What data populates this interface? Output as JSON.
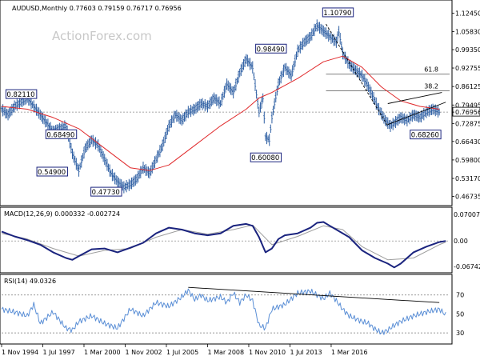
{
  "chart_data": [
    {
      "type": "ohlc",
      "header": "AUDUSD,Monthly  0.77603 0.79159 0.76717 0.76956",
      "watermark": "ActionForex.com",
      "ylim": [
        0.44,
        1.16
      ],
      "y_ticks": [
        "1.12450",
        "1.05830",
        "0.99350",
        "0.92755",
        "0.86125",
        "0.79495",
        "0.76956",
        "0.72875",
        "0.66430",
        "0.59800",
        "0.53170",
        "0.46735"
      ],
      "last_price": "0.76956",
      "fib_levels": [
        {
          "label": "61.8",
          "value": 0.9055
        },
        {
          "label": "38.2",
          "value": 0.846
        }
      ],
      "price_labels": [
        "1.10790",
        "0.98490",
        "0.82110",
        "0.68490",
        "0.60080",
        "0.68260",
        "0.54900",
        "0.47730"
      ],
      "series": [
        {
          "points": [
            [
              0,
              0.78
            ],
            [
              5,
              0.76
            ],
            [
              10,
              0.79
            ],
            [
              20,
              0.82
            ],
            [
              30,
              0.76
            ],
            [
              40,
              0.7
            ],
            [
              50,
              0.72
            ],
            [
              55,
              0.62
            ],
            [
              60,
              0.56
            ],
            [
              65,
              0.64
            ],
            [
              70,
              0.67
            ],
            [
              75,
              0.65
            ],
            [
              80,
              0.6
            ],
            [
              85,
              0.55
            ],
            [
              90,
              0.52
            ],
            [
              95,
              0.5
            ],
            [
              100,
              0.51
            ],
            [
              105,
              0.53
            ],
            [
              110,
              0.57
            ],
            [
              115,
              0.55
            ],
            [
              120,
              0.6
            ],
            [
              125,
              0.65
            ],
            [
              130,
              0.72
            ],
            [
              135,
              0.76
            ],
            [
              140,
              0.74
            ],
            [
              145,
              0.77
            ],
            [
              150,
              0.78
            ],
            [
              155,
              0.8
            ],
            [
              160,
              0.79
            ],
            [
              165,
              0.82
            ],
            [
              170,
              0.8
            ],
            [
              175,
              0.87
            ],
            [
              180,
              0.84
            ],
            [
              185,
              0.91
            ],
            [
              190,
              0.96
            ],
            [
              195,
              0.93
            ],
            [
              200,
              0.77
            ],
            [
              203,
              0.82
            ],
            [
              205,
              0.68
            ],
            [
              208,
              0.67
            ],
            [
              210,
              0.75
            ],
            [
              212,
              0.8
            ],
            [
              215,
              0.87
            ],
            [
              220,
              0.93
            ],
            [
              225,
              0.9
            ],
            [
              230,
              0.99
            ],
            [
              235,
              1.02
            ],
            [
              240,
              1.04
            ],
            [
              245,
              1.08
            ],
            [
              250,
              1.06
            ],
            [
              255,
              1.04
            ],
            [
              260,
              1.02
            ],
            [
              262,
              1.06
            ],
            [
              265,
              0.98
            ],
            [
              270,
              0.94
            ],
            [
              275,
              0.92
            ],
            [
              280,
              0.9
            ],
            [
              285,
              0.86
            ],
            [
              290,
              0.81
            ],
            [
              293,
              0.78
            ],
            [
              298,
              0.74
            ],
            [
              302,
              0.72
            ],
            [
              305,
              0.73
            ],
            [
              310,
              0.75
            ],
            [
              315,
              0.74
            ],
            [
              320,
              0.76
            ],
            [
              325,
              0.75
            ],
            [
              330,
              0.77
            ],
            [
              335,
              0.78
            ],
            [
              340,
              0.77
            ]
          ]
        },
        {
          "points": [
            [
              0,
              0.79
            ],
            [
              20,
              0.78
            ],
            [
              40,
              0.75
            ],
            [
              60,
              0.71
            ],
            [
              80,
              0.64
            ],
            [
              100,
              0.57
            ],
            [
              115,
              0.56
            ],
            [
              130,
              0.58
            ],
            [
              150,
              0.65
            ],
            [
              170,
              0.72
            ],
            [
              190,
              0.78
            ],
            [
              200,
              0.82
            ],
            [
              210,
              0.84
            ],
            [
              230,
              0.89
            ],
            [
              250,
              0.95
            ],
            [
              265,
              0.97
            ],
            [
              280,
              0.93
            ],
            [
              295,
              0.86
            ],
            [
              310,
              0.81
            ],
            [
              325,
              0.79
            ],
            [
              340,
              0.78
            ]
          ]
        }
      ],
      "trendlines": [
        [
          [
            252,
            1.085
          ],
          [
            300,
            0.72
          ]
        ],
        [
          [
            300,
            0.725
          ],
          [
            345,
            0.805
          ]
        ],
        [
          [
            300,
            0.8
          ],
          [
            342,
            0.84
          ]
        ]
      ]
    },
    {
      "type": "line",
      "header": "MACD(12,26,9) 0.000332 -0.002724",
      "y_ticks": [
        "0.070071",
        "0.00",
        "-0.067423"
      ],
      "ylim": [
        -0.08,
        0.085
      ],
      "series": [
        {
          "points": [
            [
              0,
              0.025
            ],
            [
              10,
              0.012
            ],
            [
              20,
              0.002
            ],
            [
              30,
              -0.01
            ],
            [
              40,
              -0.03
            ],
            [
              50,
              -0.045
            ],
            [
              55,
              -0.05
            ],
            [
              60,
              -0.04
            ],
            [
              70,
              -0.022
            ],
            [
              80,
              -0.02
            ],
            [
              90,
              -0.03
            ],
            [
              100,
              -0.018
            ],
            [
              110,
              -0.005
            ],
            [
              120,
              0.02
            ],
            [
              130,
              0.035
            ],
            [
              140,
              0.03
            ],
            [
              150,
              0.02
            ],
            [
              160,
              0.015
            ],
            [
              170,
              0.02
            ],
            [
              180,
              0.04
            ],
            [
              190,
              0.045
            ],
            [
              195,
              0.04
            ],
            [
              200,
              0.01
            ],
            [
              205,
              -0.03
            ],
            [
              210,
              -0.02
            ],
            [
              215,
              0.005
            ],
            [
              220,
              0.015
            ],
            [
              230,
              0.02
            ],
            [
              240,
              0.035
            ],
            [
              245,
              0.048
            ],
            [
              250,
              0.05
            ],
            [
              255,
              0.04
            ],
            [
              260,
              0.03
            ],
            [
              270,
              0.01
            ],
            [
              280,
              -0.025
            ],
            [
              290,
              -0.045
            ],
            [
              300,
              -0.06
            ],
            [
              305,
              -0.07
            ],
            [
              310,
              -0.06
            ],
            [
              320,
              -0.03
            ],
            [
              330,
              -0.015
            ],
            [
              340,
              -0.003
            ],
            [
              345,
              0.0
            ]
          ]
        },
        {
          "points": [
            [
              0,
              0.02
            ],
            [
              20,
              0.005
            ],
            [
              40,
              -0.02
            ],
            [
              60,
              -0.04
            ],
            [
              80,
              -0.025
            ],
            [
              100,
              -0.02
            ],
            [
              120,
              0.01
            ],
            [
              140,
              0.03
            ],
            [
              160,
              0.018
            ],
            [
              180,
              0.03
            ],
            [
              195,
              0.042
            ],
            [
              210,
              -0.01
            ],
            [
              230,
              0.012
            ],
            [
              250,
              0.04
            ],
            [
              265,
              0.03
            ],
            [
              280,
              -0.015
            ],
            [
              300,
              -0.05
            ],
            [
              320,
              -0.045
            ],
            [
              340,
              -0.01
            ],
            [
              345,
              -0.003
            ]
          ]
        }
      ]
    },
    {
      "type": "line",
      "header": "RSI(14) 49.0326",
      "y_ticks": [
        "70",
        "50",
        "30"
      ],
      "ylim": [
        20,
        90
      ],
      "series": [
        {
          "points": [
            [
              0,
              55
            ],
            [
              10,
              52
            ],
            [
              20,
              48
            ],
            [
              25,
              60
            ],
            [
              30,
              40
            ],
            [
              40,
              52
            ],
            [
              50,
              35
            ],
            [
              55,
              33
            ],
            [
              60,
              42
            ],
            [
              70,
              48
            ],
            [
              80,
              40
            ],
            [
              90,
              35
            ],
            [
              100,
              55
            ],
            [
              110,
              48
            ],
            [
              120,
              62
            ],
            [
              130,
              58
            ],
            [
              140,
              68
            ],
            [
              145,
              75
            ],
            [
              150,
              65
            ],
            [
              155,
              70
            ],
            [
              160,
              64
            ],
            [
              170,
              68
            ],
            [
              175,
              62
            ],
            [
              180,
              72
            ],
            [
              185,
              62
            ],
            [
              190,
              70
            ],
            [
              195,
              64
            ],
            [
              200,
              38
            ],
            [
              205,
              35
            ],
            [
              210,
              55
            ],
            [
              220,
              60
            ],
            [
              230,
              72
            ],
            [
              240,
              74
            ],
            [
              245,
              70
            ],
            [
              250,
              66
            ],
            [
              255,
              72
            ],
            [
              260,
              64
            ],
            [
              265,
              55
            ],
            [
              270,
              48
            ],
            [
              280,
              42
            ],
            [
              285,
              40
            ],
            [
              290,
              34
            ],
            [
              295,
              30
            ],
            [
              300,
              33
            ],
            [
              305,
              38
            ],
            [
              310,
              42
            ],
            [
              320,
              48
            ],
            [
              330,
              52
            ],
            [
              340,
              55
            ],
            [
              345,
              49
            ]
          ]
        }
      ],
      "trendlines": [
        [
          [
            145,
            78
          ],
          [
            340,
            62
          ]
        ]
      ]
    }
  ],
  "x_ticks": [
    "1 Nov 1994",
    "1 Jul 1997",
    "1 Mar 2000",
    "1 Nov 2002",
    "1 Jul 2005",
    "1 Mar 2008",
    "1 Nov 2010",
    "1 Jul 2013",
    "1 Mar 2016"
  ],
  "x_tick_months": [
    0,
    32,
    64,
    96,
    128,
    160,
    192,
    224,
    256
  ],
  "colors": {
    "price": "#2e5fa3",
    "ma": "#e0292b",
    "macd": "#1a237e",
    "signal": "#9e9e9e",
    "rsi": "#5b8fd6",
    "grid": "#b0b0b0",
    "label_border": "#1a237e"
  }
}
